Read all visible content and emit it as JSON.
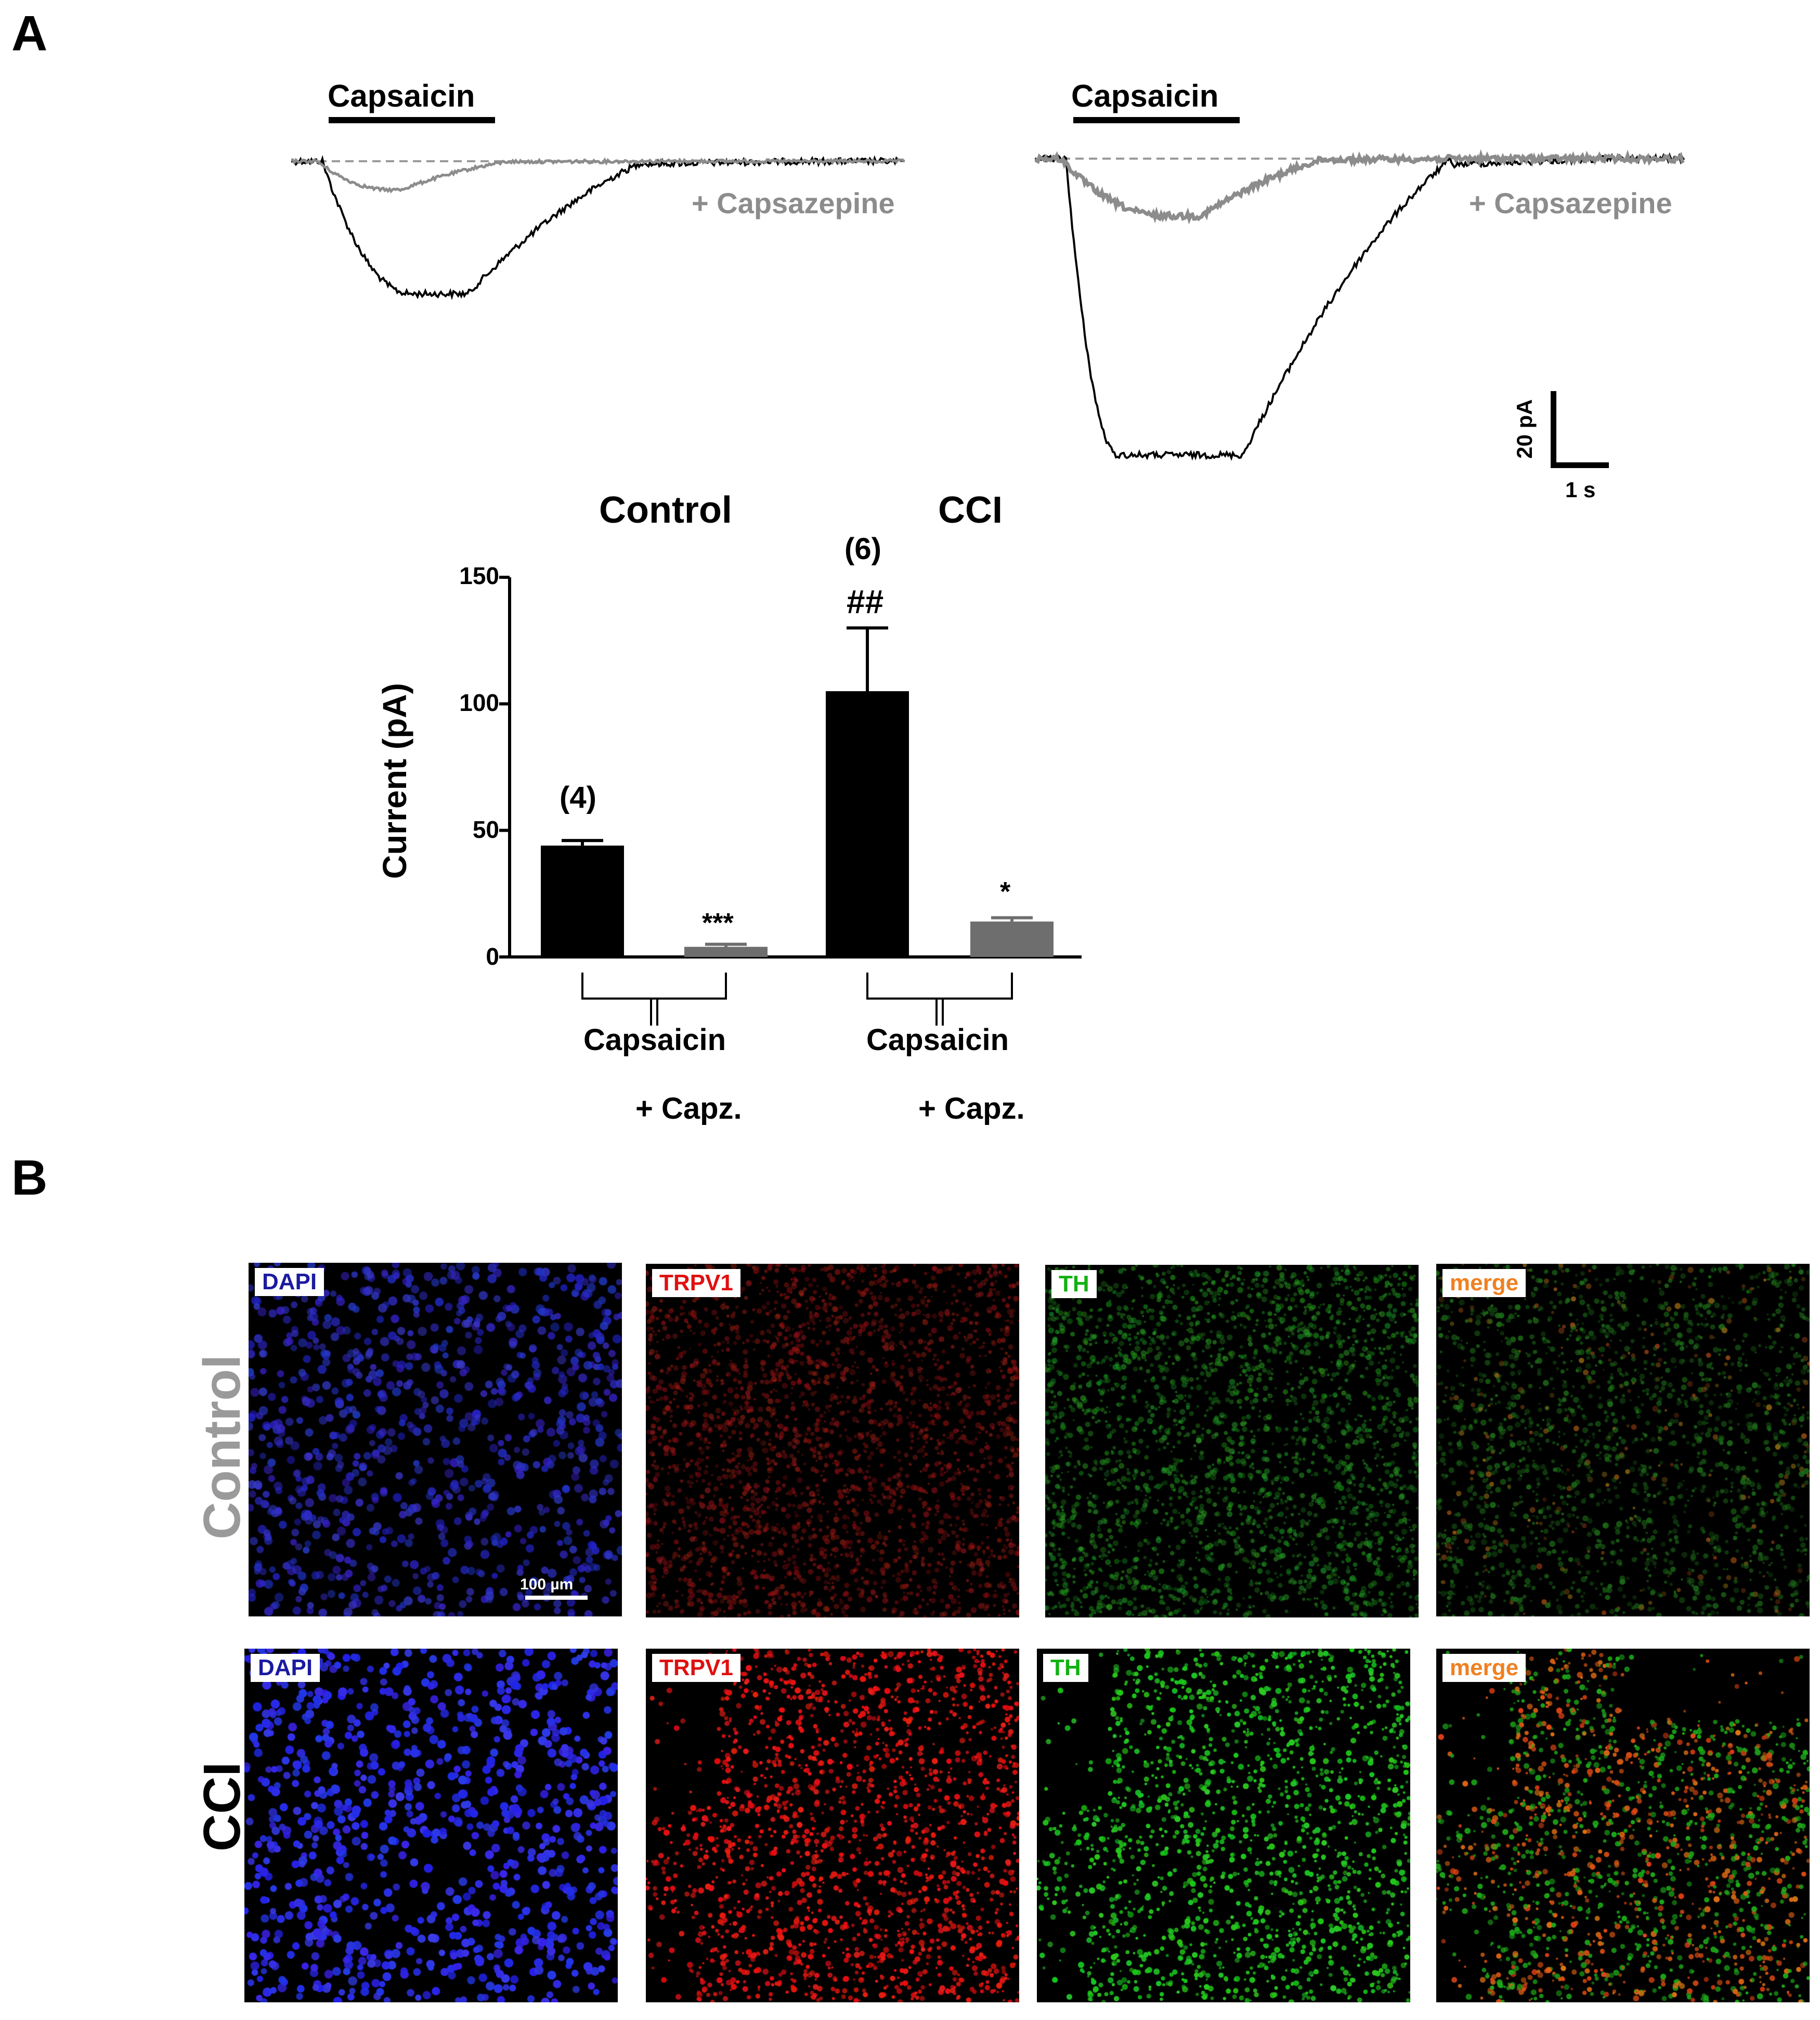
{
  "panel_a": {
    "letter": "A",
    "trace_left": {
      "stimulus": "Capsaicin",
      "antagonist": "+ Capsazepine"
    },
    "trace_right": {
      "stimulus": "Capsaicin",
      "antagonist": "+ Capsazepine"
    },
    "scalebar": {
      "y": "20 pA",
      "x": "1 s"
    },
    "colors": {
      "control_trace": "#000000",
      "antagonist_trace": "#8c8c8c",
      "baseline": "#9a9a9a"
    }
  },
  "chart_data": {
    "type": "bar",
    "group_titles": [
      "Control",
      "CCI"
    ],
    "ylabel": "Current (pA)",
    "ylim": [
      0,
      150
    ],
    "yticks": [
      "0",
      "50",
      "100",
      "150"
    ],
    "bars": [
      {
        "group": "Control",
        "condition": "Capsaicin",
        "value": 44,
        "sem": 2,
        "color": "#000000",
        "n_label": "(4)",
        "sig": ""
      },
      {
        "group": "Control",
        "condition": "+ Capz.",
        "value": 4,
        "sem": 1,
        "color": "#6e6e6e",
        "n_label": "",
        "sig": "***"
      },
      {
        "group": "CCI",
        "condition": "Capsaicin",
        "value": 105,
        "sem": 25,
        "color": "#000000",
        "n_label": "(6)",
        "sig": "##"
      },
      {
        "group": "CCI",
        "condition": "+ Capz.",
        "value": 14,
        "sem": 1.5,
        "color": "#6e6e6e",
        "n_label": "",
        "sig": "*"
      }
    ],
    "x_captions": [
      {
        "main": "Capsaicin",
        "sub": "+ Capz."
      },
      {
        "main": "Capsaicin",
        "sub": "+ Capz."
      }
    ]
  },
  "panel_b": {
    "letter": "B",
    "rows": [
      {
        "label": "Control",
        "label_color": "#9a9a9a",
        "tiles": [
          {
            "stain": "DAPI",
            "stain_color": "#1a1aa0",
            "intensity": "low"
          },
          {
            "stain": "TRPV1",
            "stain_color": "#e01010",
            "intensity": "low"
          },
          {
            "stain": "TH",
            "stain_color": "#12b012",
            "intensity": "low"
          },
          {
            "stain": "merge",
            "stain_color": "#f08020",
            "intensity": "low"
          }
        ]
      },
      {
        "label": "CCI",
        "label_color": "#000000",
        "tiles": [
          {
            "stain": "DAPI",
            "stain_color": "#1a1aa0",
            "intensity": "high"
          },
          {
            "stain": "TRPV1",
            "stain_color": "#e01010",
            "intensity": "high"
          },
          {
            "stain": "TH",
            "stain_color": "#12b012",
            "intensity": "high"
          },
          {
            "stain": "merge",
            "stain_color": "#f08020",
            "intensity": "high"
          }
        ]
      }
    ],
    "scalebar": "100 µm"
  }
}
